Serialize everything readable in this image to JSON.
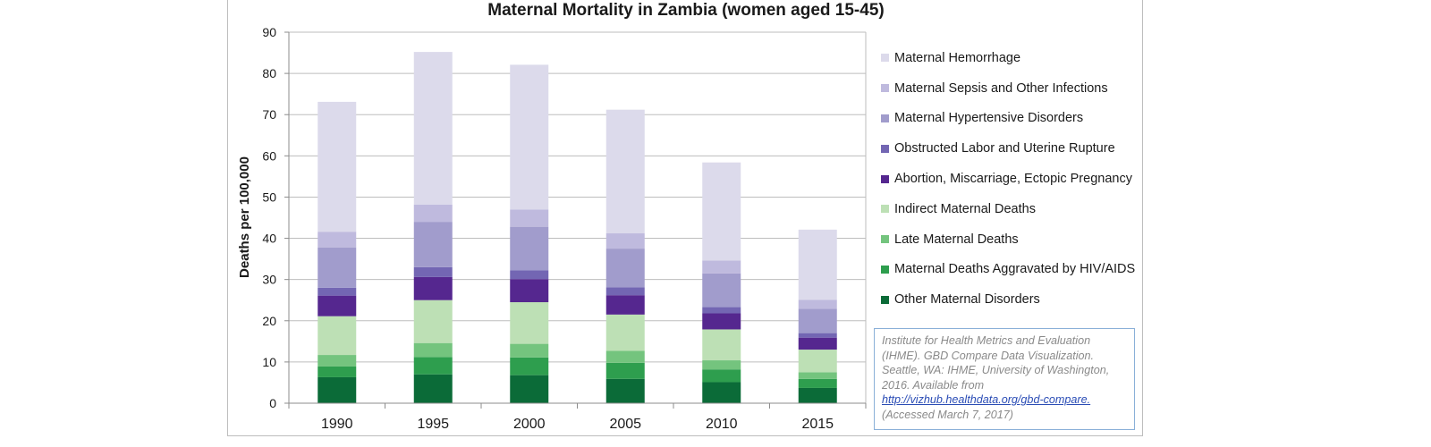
{
  "chart_data": {
    "type": "bar",
    "stacked": true,
    "title": "Maternal Mortality in Zambia (women aged 15-45)",
    "ylabel": "Deaths per 100,000",
    "xlabel": "",
    "ylim": [
      0,
      90
    ],
    "yticks": [
      0,
      10,
      20,
      30,
      40,
      50,
      60,
      70,
      80,
      90
    ],
    "grid": true,
    "legend_position": "right",
    "categories": [
      "1990",
      "1995",
      "2000",
      "2005",
      "2010",
      "2015"
    ],
    "series": [
      {
        "name": "Other Maternal Disorders",
        "color": "#0b6b38",
        "values": [
          6.3,
          7.0,
          6.8,
          5.9,
          5.1,
          3.7
        ]
      },
      {
        "name": "Maternal Deaths Aggravated by HIV/AIDS",
        "color": "#2e9e4e",
        "values": [
          2.6,
          4.2,
          4.3,
          3.9,
          3.1,
          2.2
        ]
      },
      {
        "name": "Late Maternal Deaths",
        "color": "#74c47e",
        "values": [
          2.8,
          3.4,
          3.3,
          2.9,
          2.2,
          1.6
        ]
      },
      {
        "name": "Indirect Maternal Deaths",
        "color": "#bde0b5",
        "values": [
          9.4,
          10.4,
          10.1,
          8.8,
          7.5,
          5.5
        ]
      },
      {
        "name": "Abortion, Miscarriage, Ectopic Pregnancy",
        "color": "#55278f",
        "values": [
          5.0,
          5.6,
          5.6,
          4.7,
          3.9,
          2.9
        ]
      },
      {
        "name": "Obstructed Labor and Uterine Rupture",
        "color": "#7366b3",
        "values": [
          1.9,
          2.4,
          2.1,
          1.9,
          1.5,
          1.1
        ]
      },
      {
        "name": "Maternal Hypertensive Disorders",
        "color": "#a19ccc",
        "values": [
          9.8,
          11.0,
          10.6,
          9.4,
          8.2,
          5.9
        ]
      },
      {
        "name": "Maternal Sepsis and Other Infections",
        "color": "#bfbade",
        "values": [
          3.8,
          4.2,
          4.2,
          3.7,
          3.1,
          2.2
        ]
      },
      {
        "name": "Maternal Hemorrhage",
        "color": "#dcdaeb",
        "values": [
          31.5,
          37.0,
          35.1,
          30.0,
          23.8,
          17.0
        ]
      }
    ]
  },
  "source": {
    "citation": "Institute for Health Metrics and Evaluation (IHME). GBD Compare Data Visualization. Seattle, WA: IHME, University of Washington, 2016. Available from",
    "link": "http://vizhub.healthdata.org/gbd-compare.",
    "accessed": "(Accessed March 7, 2017)"
  }
}
